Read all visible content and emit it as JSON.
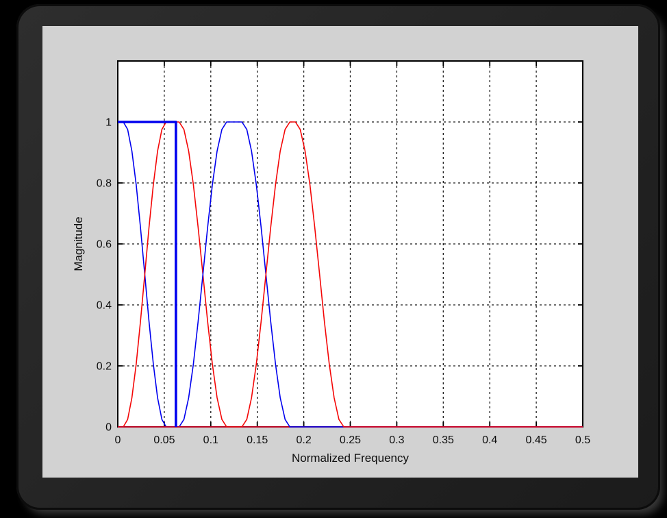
{
  "window": {
    "background_color": "#000000",
    "frame_color": "#262626",
    "figure_background_color": "#d2d2d2",
    "plot_background_color": "#ffffff"
  },
  "chart_data": {
    "type": "line",
    "title": "",
    "xlabel": "Normalized Frequency",
    "ylabel": "Magnitude",
    "xlim": [
      0,
      0.5
    ],
    "ylim": [
      0,
      1.2
    ],
    "grid": "dotted-black",
    "legend": "none",
    "axis_color": "#000000",
    "x_ticks": [
      0,
      0.05,
      0.1,
      0.15,
      0.2,
      0.25,
      0.3,
      0.35,
      0.4,
      0.45,
      0.5
    ],
    "x_tick_labels": [
      "0",
      "0.05",
      "0.1",
      "0.15",
      "0.2",
      "0.25",
      "0.3",
      "0.35",
      "0.4",
      "0.45",
      "0.5"
    ],
    "y_ticks": [
      0,
      0.2,
      0.4,
      0.6,
      0.8,
      1
    ],
    "y_tick_labels": [
      "0",
      "0.2",
      "0.4",
      "0.6",
      "0.8",
      "1"
    ],
    "series": [
      {
        "id": "lowpass-scaling-response",
        "color": "#0000ee",
        "line_width": 1.6,
        "points": [
          [
            0,
            1
          ],
          [
            0.006,
            1
          ],
          [
            0.0106,
            0.9755
          ],
          [
            0.0152,
            0.9045
          ],
          [
            0.0198,
            0.7939
          ],
          [
            0.0244,
            0.6545
          ],
          [
            0.029,
            0.5
          ],
          [
            0.0336,
            0.3455
          ],
          [
            0.0382,
            0.2061
          ],
          [
            0.0428,
            0.0955
          ],
          [
            0.0474,
            0.0245
          ],
          [
            0.052,
            0
          ],
          [
            0.5,
            0
          ]
        ]
      },
      {
        "id": "wavelet-band-1-response",
        "color": "#f40606",
        "line_width": 1.6,
        "points": [
          [
            0,
            0
          ],
          [
            0.006,
            0
          ],
          [
            0.0106,
            0.0245
          ],
          [
            0.0152,
            0.0955
          ],
          [
            0.0198,
            0.2061
          ],
          [
            0.0244,
            0.3455
          ],
          [
            0.029,
            0.5
          ],
          [
            0.0336,
            0.6545
          ],
          [
            0.0382,
            0.7939
          ],
          [
            0.0428,
            0.9045
          ],
          [
            0.0474,
            0.9755
          ],
          [
            0.052,
            1
          ],
          [
            0.066,
            1
          ],
          [
            0.0711,
            0.9755
          ],
          [
            0.0762,
            0.9045
          ],
          [
            0.0813,
            0.7939
          ],
          [
            0.0864,
            0.6545
          ],
          [
            0.0915,
            0.5
          ],
          [
            0.0966,
            0.3455
          ],
          [
            0.1017,
            0.2061
          ],
          [
            0.1068,
            0.0955
          ],
          [
            0.1119,
            0.0245
          ],
          [
            0.117,
            0
          ],
          [
            0.5,
            0
          ]
        ]
      },
      {
        "id": "wavelet-band-2-response",
        "color": "#0000ee",
        "line_width": 1.6,
        "points": [
          [
            0,
            0
          ],
          [
            0.066,
            0
          ],
          [
            0.0711,
            0.0245
          ],
          [
            0.0762,
            0.0955
          ],
          [
            0.0813,
            0.2061
          ],
          [
            0.0864,
            0.3455
          ],
          [
            0.0915,
            0.5
          ],
          [
            0.0966,
            0.6545
          ],
          [
            0.1017,
            0.7939
          ],
          [
            0.1068,
            0.9045
          ],
          [
            0.1119,
            0.9755
          ],
          [
            0.117,
            1
          ],
          [
            0.1335,
            1
          ],
          [
            0.1387,
            0.9755
          ],
          [
            0.1438,
            0.9045
          ],
          [
            0.149,
            0.7939
          ],
          [
            0.1541,
            0.6545
          ],
          [
            0.1593,
            0.5
          ],
          [
            0.1644,
            0.3455
          ],
          [
            0.1696,
            0.2061
          ],
          [
            0.1747,
            0.0955
          ],
          [
            0.1799,
            0.0245
          ],
          [
            0.185,
            0
          ],
          [
            0.5,
            0
          ]
        ]
      },
      {
        "id": "wavelet-band-3-response",
        "color": "#f40606",
        "line_width": 1.6,
        "points": [
          [
            0,
            0
          ],
          [
            0.1335,
            0
          ],
          [
            0.1387,
            0.0245
          ],
          [
            0.1438,
            0.0955
          ],
          [
            0.149,
            0.2061
          ],
          [
            0.1541,
            0.3455
          ],
          [
            0.1593,
            0.5
          ],
          [
            0.1644,
            0.6545
          ],
          [
            0.1696,
            0.7939
          ],
          [
            0.1747,
            0.9045
          ],
          [
            0.1799,
            0.9755
          ],
          [
            0.185,
            1
          ],
          [
            0.191,
            1
          ],
          [
            0.1962,
            0.9755
          ],
          [
            0.2014,
            0.9045
          ],
          [
            0.2066,
            0.7939
          ],
          [
            0.2118,
            0.6545
          ],
          [
            0.217,
            0.5
          ],
          [
            0.2222,
            0.3455
          ],
          [
            0.2274,
            0.2061
          ],
          [
            0.2326,
            0.0955
          ],
          [
            0.2378,
            0.0245
          ],
          [
            0.243,
            0
          ],
          [
            0.5,
            0
          ]
        ]
      },
      {
        "id": "ideal-brickwall-filter",
        "color": "#0000ee",
        "line_width": 3.6,
        "points": [
          [
            0,
            1
          ],
          [
            0.0625,
            1
          ],
          [
            0.0625,
            0
          ]
        ]
      }
    ]
  }
}
